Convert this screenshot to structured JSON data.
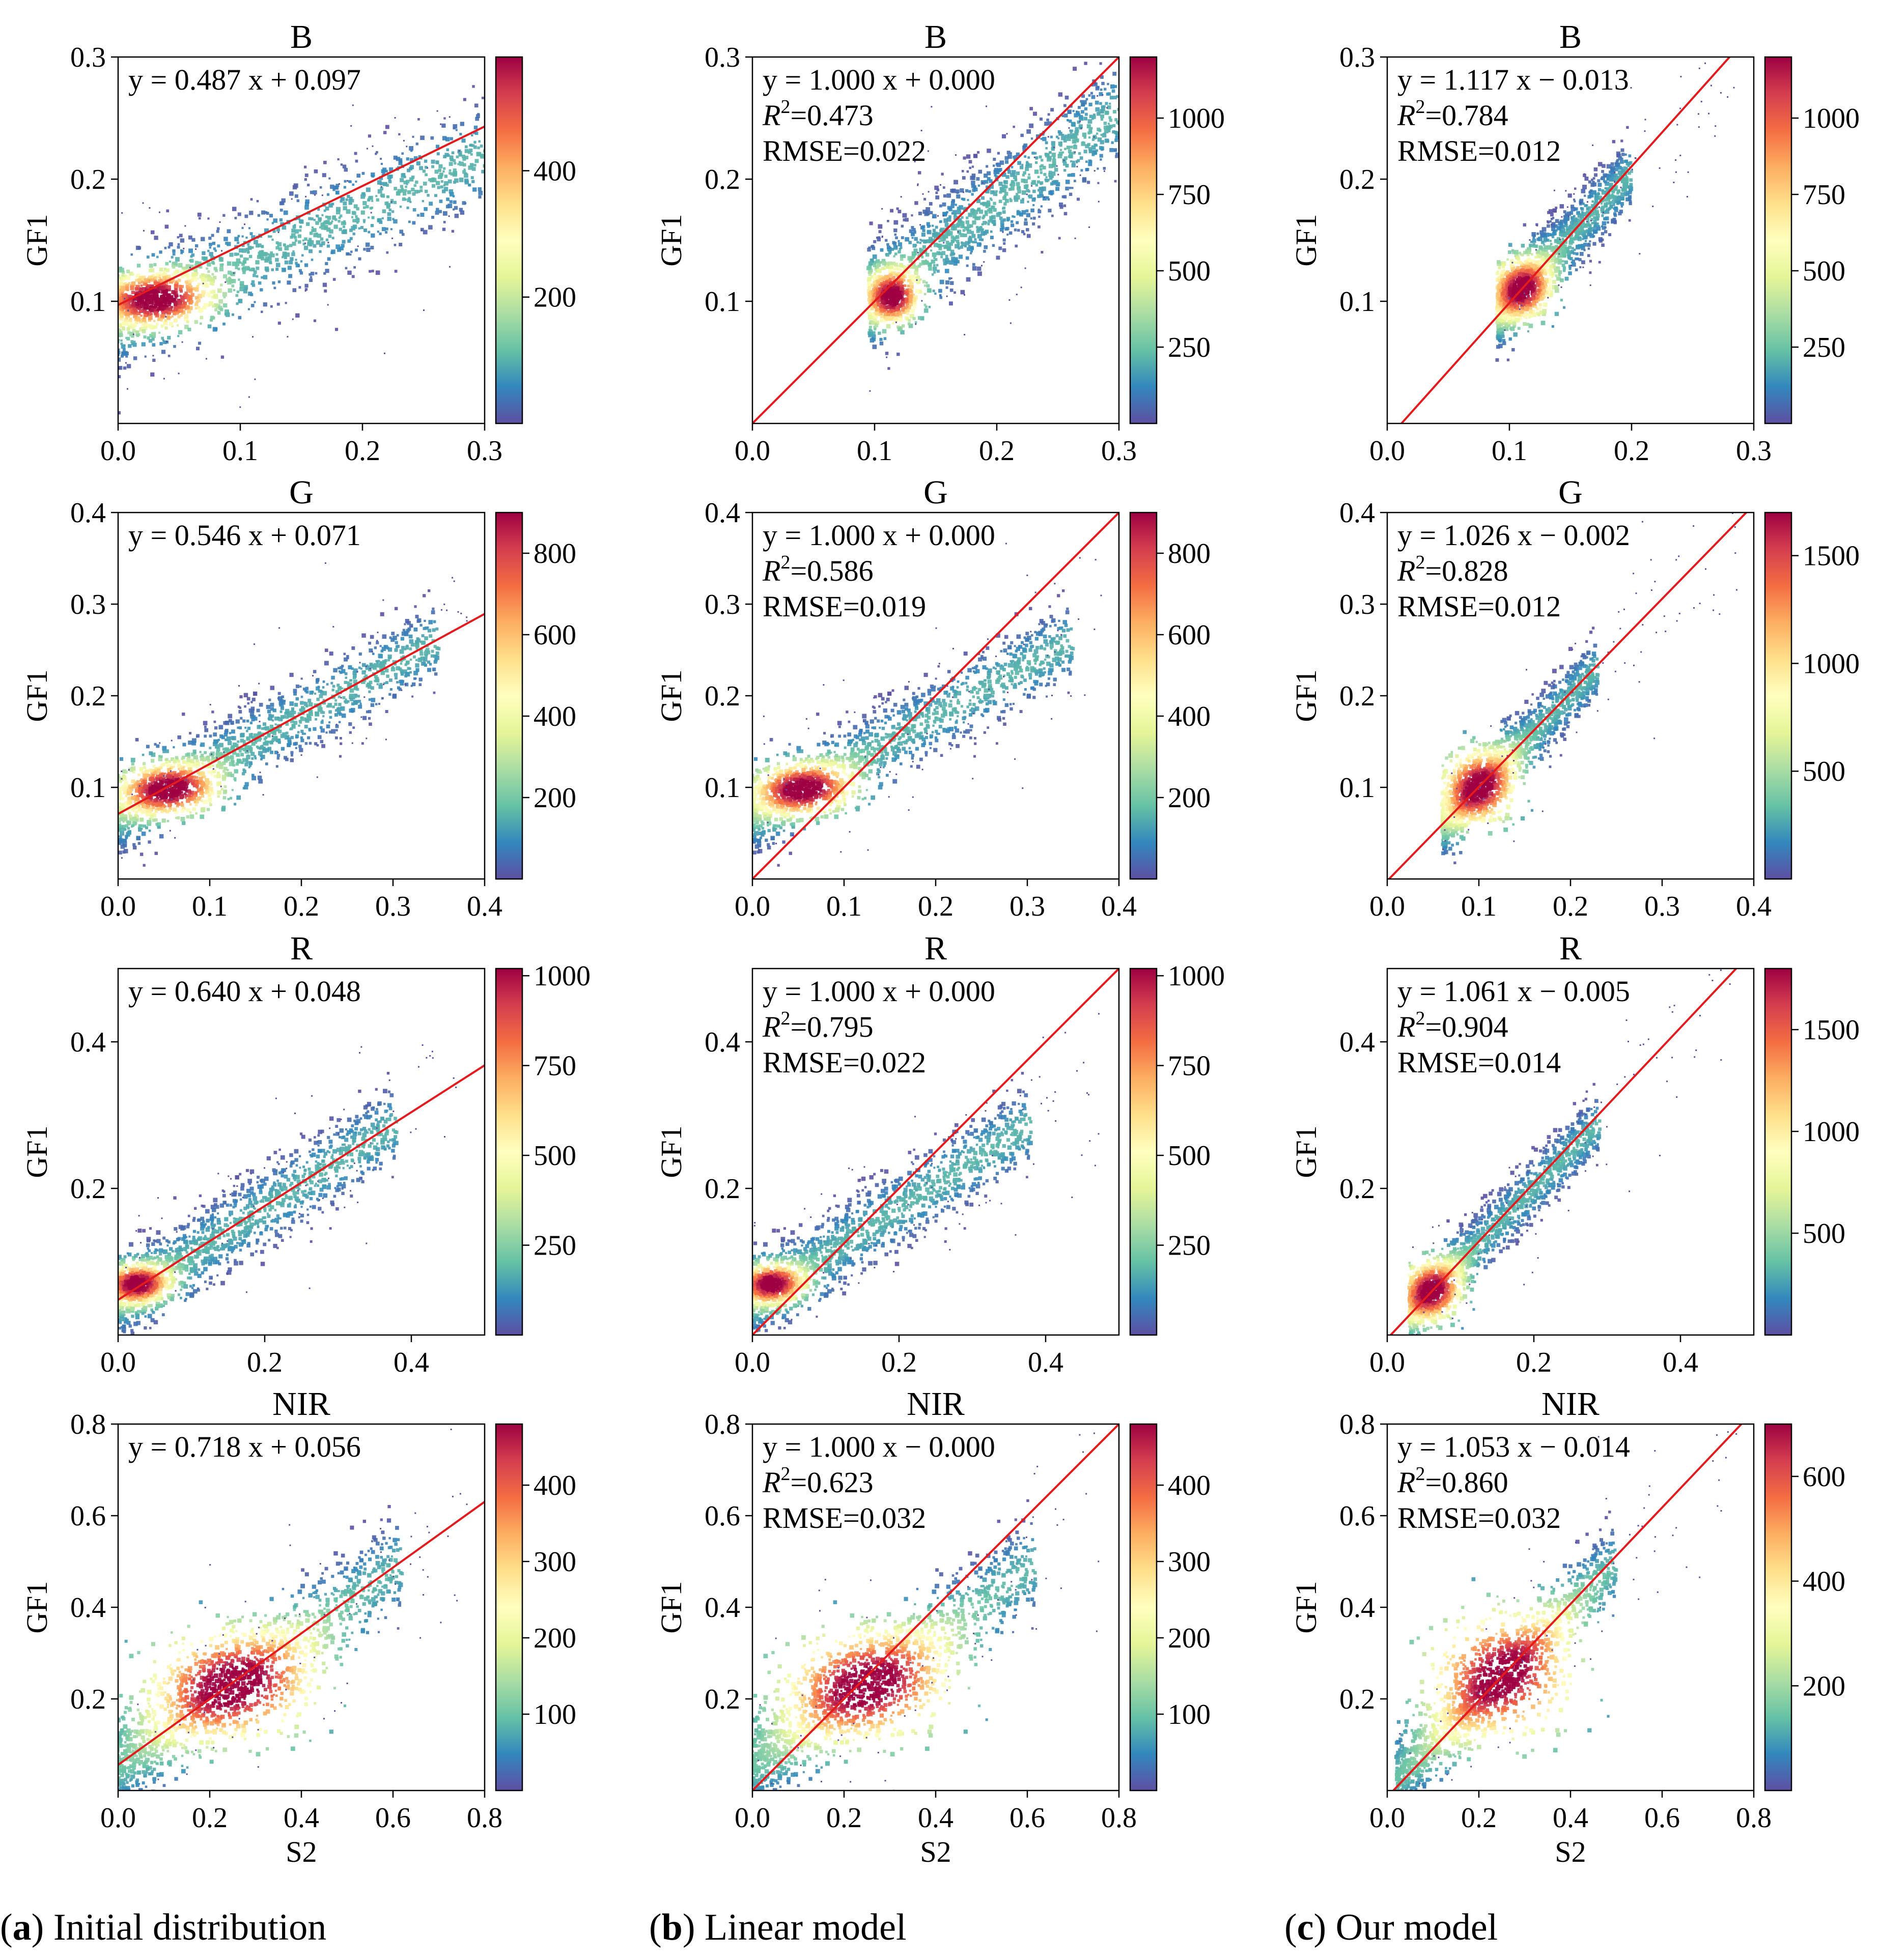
{
  "colors": {
    "fit_line": "#e41a1c",
    "axes": "#000000",
    "colormap": [
      "#5e4fa2",
      "#3288bd",
      "#66c2a5",
      "#abdda4",
      "#e6f598",
      "#ffffbf",
      "#fee08b",
      "#fdae61",
      "#f46d43",
      "#d53e4f",
      "#9e0142"
    ]
  },
  "captions": [
    {
      "letter": "a",
      "paren_open": "(",
      "paren_close": ")",
      "text": " Initial distribution"
    },
    {
      "letter": "b",
      "paren_open": "(",
      "paren_close": ")",
      "text": " Linear model"
    },
    {
      "letter": "c",
      "paren_open": "(",
      "paren_close": ")",
      "text": " Our model"
    }
  ],
  "chart_data": [
    {
      "type": "heatmap",
      "title": "B",
      "xlabel": "",
      "ylabel": "GF1",
      "xlim": [
        0,
        0.3
      ],
      "ylim": [
        0,
        0.3
      ],
      "xticks": [
        "0.0",
        "0.1",
        "0.2",
        "0.3"
      ],
      "yticks": [
        "0.1",
        "0.2",
        "0.3"
      ],
      "ytick_values": [
        0.1,
        0.2,
        0.3
      ],
      "equation": "y = 0.487 x + 0.097",
      "r2": null,
      "rmse": null,
      "fit": {
        "slope": 0.487,
        "intercept": 0.097
      },
      "colorbar": {
        "max": 580,
        "ticks": [
          200,
          400
        ],
        "tick_labels": [
          "200",
          "400"
        ]
      },
      "cloud": {
        "x_range": [
          0.0,
          0.3
        ],
        "y_intercept": 0.085,
        "slope": 0.45,
        "spread": 0.022,
        "peak": [
          0.03,
          0.102
        ],
        "peak_spread": [
          0.02,
          0.01
        ]
      }
    },
    {
      "type": "heatmap",
      "title": "B",
      "xlabel": "",
      "ylabel": "GF1",
      "xlim": [
        0,
        0.3
      ],
      "ylim": [
        0,
        0.3
      ],
      "xticks": [
        "0.0",
        "0.1",
        "0.2",
        "0.3"
      ],
      "yticks": [
        "0.1",
        "0.2",
        "0.3"
      ],
      "ytick_values": [
        0.1,
        0.2,
        0.3
      ],
      "equation": "y = 1.000 x + 0.000",
      "r2_label": "R",
      "r2_sup": "2",
      "r2_value": "=0.473",
      "rmse": "RMSE=0.022",
      "fit": {
        "slope": 1.0,
        "intercept": 0.0
      },
      "colorbar": {
        "max": 1200,
        "ticks": [
          250,
          500,
          750,
          1000
        ],
        "tick_labels": [
          "250",
          "500",
          "750",
          "1000"
        ]
      },
      "cloud": {
        "x_range": [
          0.095,
          0.3
        ],
        "y_intercept": 0.03,
        "slope": 0.75,
        "spread": 0.022,
        "peak": [
          0.115,
          0.103
        ],
        "peak_spread": [
          0.01,
          0.01
        ]
      }
    },
    {
      "type": "heatmap",
      "title": "B",
      "xlabel": "",
      "ylabel": "GF1",
      "xlim": [
        0,
        0.3
      ],
      "ylim": [
        0,
        0.3
      ],
      "xticks": [
        "0.0",
        "0.1",
        "0.2",
        "0.3"
      ],
      "yticks": [
        "0.1",
        "0.2",
        "0.3"
      ],
      "ytick_values": [
        0.1,
        0.2,
        0.3
      ],
      "equation": "y = 1.117 x − 0.013",
      "r2_label": "R",
      "r2_sup": "2",
      "r2_value": "=0.784",
      "rmse": "RMSE=0.012",
      "fit": {
        "slope": 1.117,
        "intercept": -0.013
      },
      "colorbar": {
        "max": 1200,
        "ticks": [
          250,
          500,
          750,
          1000
        ],
        "tick_labels": [
          "250",
          "500",
          "750",
          "1000"
        ]
      },
      "cloud": {
        "x_range": [
          0.09,
          0.2
        ],
        "y_intercept": -0.005,
        "slope": 1.05,
        "spread": 0.015,
        "peak": [
          0.11,
          0.11
        ],
        "peak_spread": [
          0.012,
          0.012
        ]
      }
    },
    {
      "type": "heatmap",
      "title": "G",
      "xlabel": "",
      "ylabel": "GF1",
      "xlim": [
        0,
        0.4
      ],
      "ylim": [
        0,
        0.4
      ],
      "xticks": [
        "0.0",
        "0.1",
        "0.2",
        "0.3",
        "0.4"
      ],
      "yticks": [
        "0.1",
        "0.2",
        "0.3",
        "0.4"
      ],
      "ytick_values": [
        0.1,
        0.2,
        0.3,
        0.4
      ],
      "equation": "y = 0.546 x + 0.071",
      "r2": null,
      "rmse": null,
      "fit": {
        "slope": 0.546,
        "intercept": 0.071
      },
      "colorbar": {
        "max": 900,
        "ticks": [
          200,
          400,
          600,
          800
        ],
        "tick_labels": [
          "200",
          "400",
          "600",
          "800"
        ]
      },
      "cloud": {
        "x_range": [
          0.0,
          0.35
        ],
        "y_intercept": 0.068,
        "slope": 0.55,
        "spread": 0.022,
        "peak": [
          0.055,
          0.098
        ],
        "peak_spread": [
          0.025,
          0.013
        ]
      }
    },
    {
      "type": "heatmap",
      "title": "G",
      "xlabel": "",
      "ylabel": "GF1",
      "xlim": [
        0,
        0.4
      ],
      "ylim": [
        0,
        0.4
      ],
      "xticks": [
        "0.0",
        "0.1",
        "0.2",
        "0.3",
        "0.4"
      ],
      "yticks": [
        "0.1",
        "0.2",
        "0.3",
        "0.4"
      ],
      "ytick_values": [
        0.1,
        0.2,
        0.3,
        0.4
      ],
      "equation": "y = 1.000 x + 0.000",
      "r2_label": "R",
      "r2_sup": "2",
      "r2_value": "=0.586",
      "rmse": "RMSE=0.019",
      "fit": {
        "slope": 1.0,
        "intercept": 0.0
      },
      "colorbar": {
        "max": 900,
        "ticks": [
          200,
          400,
          600,
          800
        ],
        "tick_labels": [
          "200",
          "400",
          "600",
          "800"
        ]
      },
      "cloud": {
        "x_range": [
          0.0,
          0.35
        ],
        "y_intercept": 0.068,
        "slope": 0.55,
        "spread": 0.022,
        "peak": [
          0.055,
          0.098
        ],
        "peak_spread": [
          0.025,
          0.013
        ]
      }
    },
    {
      "type": "heatmap",
      "title": "G",
      "xlabel": "",
      "ylabel": "GF1",
      "xlim": [
        0,
        0.4
      ],
      "ylim": [
        0,
        0.4
      ],
      "xticks": [
        "0.0",
        "0.1",
        "0.2",
        "0.3",
        "0.4"
      ],
      "yticks": [
        "0.1",
        "0.2",
        "0.3",
        "0.4"
      ],
      "ytick_values": [
        0.1,
        0.2,
        0.3,
        0.4
      ],
      "equation": "y = 1.026 x − 0.002",
      "r2_label": "R",
      "r2_sup": "2",
      "r2_value": "=0.828",
      "rmse": "RMSE=0.012",
      "fit": {
        "slope": 1.026,
        "intercept": -0.002
      },
      "colorbar": {
        "max": 1700,
        "ticks": [
          500,
          1000,
          1500
        ],
        "tick_labels": [
          "500",
          "1000",
          "1500"
        ]
      },
      "cloud": {
        "x_range": [
          0.06,
          0.23
        ],
        "y_intercept": 0.0,
        "slope": 1.0,
        "spread": 0.018,
        "peak": [
          0.1,
          0.1
        ],
        "peak_spread": [
          0.02,
          0.02
        ]
      }
    },
    {
      "type": "heatmap",
      "title": "R",
      "xlabel": "",
      "ylabel": "GF1",
      "xlim": [
        0,
        0.5
      ],
      "ylim": [
        0,
        0.5
      ],
      "xticks": [
        "0.0",
        "0.2",
        "0.4"
      ],
      "yticks": [
        "0.2",
        "0.4"
      ],
      "ytick_values": [
        0.2,
        0.4
      ],
      "equation": "y = 0.640 x + 0.048",
      "r2": null,
      "rmse": null,
      "fit": {
        "slope": 0.64,
        "intercept": 0.048
      },
      "colorbar": {
        "max": 1020,
        "ticks": [
          250,
          500,
          750,
          1000
        ],
        "tick_labels": [
          "250",
          "500",
          "750",
          "1000"
        ]
      },
      "cloud": {
        "x_range": [
          0.0,
          0.38
        ],
        "y_intercept": 0.045,
        "slope": 0.64,
        "spread": 0.028,
        "peak": [
          0.025,
          0.07
        ],
        "peak_spread": [
          0.02,
          0.012
        ]
      }
    },
    {
      "type": "heatmap",
      "title": "R",
      "xlabel": "",
      "ylabel": "GF1",
      "xlim": [
        0,
        0.5
      ],
      "ylim": [
        0,
        0.5
      ],
      "xticks": [
        "0.0",
        "0.2",
        "0.4"
      ],
      "yticks": [
        "0.2",
        "0.4"
      ],
      "ytick_values": [
        0.2,
        0.4
      ],
      "equation": "y = 1.000 x + 0.000",
      "r2_label": "R",
      "r2_sup": "2",
      "r2_value": "=0.795",
      "rmse": "RMSE=0.022",
      "fit": {
        "slope": 1.0,
        "intercept": 0.0
      },
      "colorbar": {
        "max": 1020,
        "ticks": [
          250,
          500,
          750,
          1000
        ],
        "tick_labels": [
          "250",
          "500",
          "750",
          "1000"
        ]
      },
      "cloud": {
        "x_range": [
          0.0,
          0.38
        ],
        "y_intercept": 0.045,
        "slope": 0.64,
        "spread": 0.028,
        "peak": [
          0.025,
          0.07
        ],
        "peak_spread": [
          0.02,
          0.012
        ]
      }
    },
    {
      "type": "heatmap",
      "title": "R",
      "xlabel": "",
      "ylabel": "GF1",
      "xlim": [
        0,
        0.5
      ],
      "ylim": [
        0,
        0.5
      ],
      "xticks": [
        "0.0",
        "0.2",
        "0.4"
      ],
      "yticks": [
        "0.2",
        "0.4"
      ],
      "ytick_values": [
        0.2,
        0.4
      ],
      "equation": "y = 1.061 x − 0.005",
      "r2_label": "R",
      "r2_sup": "2",
      "r2_value": "=0.904",
      "rmse": "RMSE=0.014",
      "fit": {
        "slope": 1.061,
        "intercept": -0.005
      },
      "colorbar": {
        "max": 1800,
        "ticks": [
          500,
          1000,
          1500
        ],
        "tick_labels": [
          "500",
          "1000",
          "1500"
        ]
      },
      "cloud": {
        "x_range": [
          0.03,
          0.29
        ],
        "y_intercept": 0.0,
        "slope": 1.0,
        "spread": 0.022,
        "peak": [
          0.06,
          0.06
        ],
        "peak_spread": [
          0.02,
          0.02
        ]
      }
    },
    {
      "type": "heatmap",
      "title": "NIR",
      "xlabel": "S2",
      "ylabel": "GF1",
      "xlim": [
        0,
        0.8
      ],
      "ylim": [
        0,
        0.8
      ],
      "xticks": [
        "0.0",
        "0.2",
        "0.4",
        "0.6",
        "0.8"
      ],
      "yticks": [
        "0.2",
        "0.4",
        "0.6",
        "0.8"
      ],
      "ytick_values": [
        0.2,
        0.4,
        0.6,
        0.8
      ],
      "equation": "y = 0.718 x + 0.056",
      "r2": null,
      "rmse": null,
      "fit": {
        "slope": 0.718,
        "intercept": 0.056
      },
      "colorbar": {
        "max": 480,
        "ticks": [
          100,
          200,
          300,
          400
        ],
        "tick_labels": [
          "100",
          "200",
          "300",
          "400"
        ]
      },
      "cloud": {
        "x_range": [
          0.0,
          0.62
        ],
        "y_intercept": 0.05,
        "slope": 0.72,
        "spread": 0.055,
        "peak": [
          0.25,
          0.23
        ],
        "peak_spread": [
          0.09,
          0.06
        ]
      }
    },
    {
      "type": "heatmap",
      "title": "NIR",
      "xlabel": "S2",
      "ylabel": "GF1",
      "xlim": [
        0,
        0.8
      ],
      "ylim": [
        0,
        0.8
      ],
      "xticks": [
        "0.0",
        "0.2",
        "0.4",
        "0.6",
        "0.8"
      ],
      "yticks": [
        "0.2",
        "0.4",
        "0.6",
        "0.8"
      ],
      "ytick_values": [
        0.2,
        0.4,
        0.6,
        0.8
      ],
      "equation": "y = 1.000 x − 0.000",
      "r2_label": "R",
      "r2_sup": "2",
      "r2_value": "=0.623",
      "rmse": "RMSE=0.032",
      "fit": {
        "slope": 1.0,
        "intercept": 0.0
      },
      "colorbar": {
        "max": 480,
        "ticks": [
          100,
          200,
          300,
          400
        ],
        "tick_labels": [
          "100",
          "200",
          "300",
          "400"
        ]
      },
      "cloud": {
        "x_range": [
          0.0,
          0.62
        ],
        "y_intercept": 0.05,
        "slope": 0.72,
        "spread": 0.055,
        "peak": [
          0.25,
          0.23
        ],
        "peak_spread": [
          0.09,
          0.06
        ]
      }
    },
    {
      "type": "heatmap",
      "title": "NIR",
      "xlabel": "S2",
      "ylabel": "GF1",
      "xlim": [
        0,
        0.8
      ],
      "ylim": [
        0,
        0.8
      ],
      "xticks": [
        "0.0",
        "0.2",
        "0.4",
        "0.6",
        "0.8"
      ],
      "yticks": [
        "0.2",
        "0.4",
        "0.6",
        "0.8"
      ],
      "ytick_values": [
        0.2,
        0.4,
        0.6,
        0.8
      ],
      "equation": "y = 1.053 x − 0.014",
      "r2_label": "R",
      "r2_sup": "2",
      "r2_value": "=0.860",
      "rmse": "RMSE=0.032",
      "fit": {
        "slope": 1.053,
        "intercept": -0.014
      },
      "colorbar": {
        "max": 700,
        "ticks": [
          200,
          400,
          600
        ],
        "tick_labels": [
          "200",
          "400",
          "600"
        ]
      },
      "cloud": {
        "x_range": [
          0.02,
          0.5
        ],
        "y_intercept": 0.0,
        "slope": 1.0,
        "spread": 0.045,
        "peak": [
          0.25,
          0.25
        ],
        "peak_spread": [
          0.08,
          0.07
        ]
      }
    }
  ]
}
